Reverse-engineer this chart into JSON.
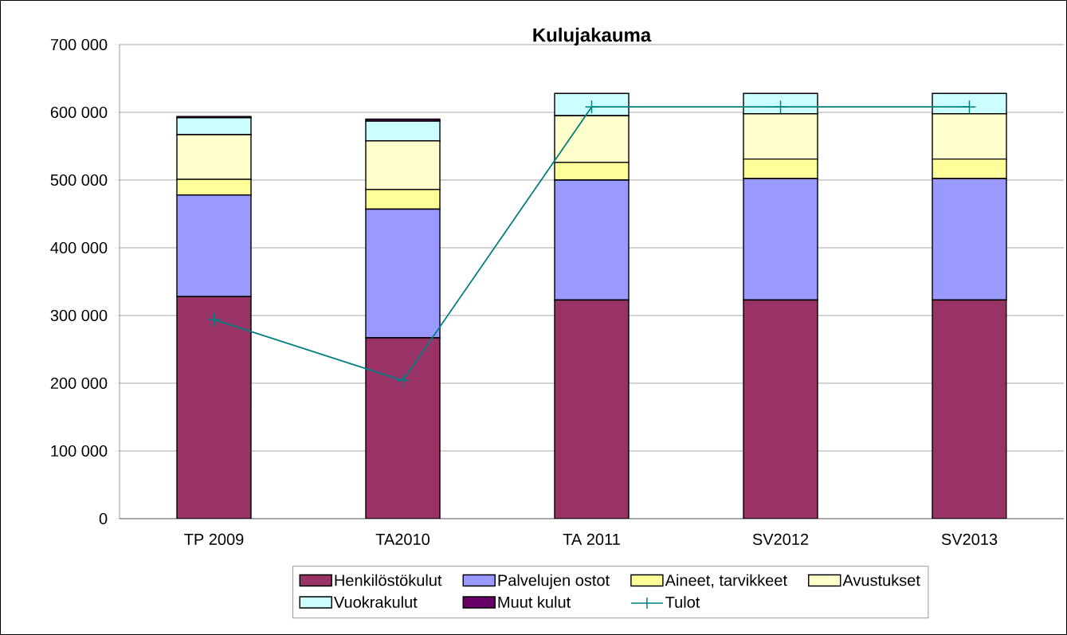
{
  "chart_data": {
    "type": "bar",
    "title": "Kulujakauma",
    "stacked": true,
    "categories": [
      "TP 2009",
      "TA2010",
      "TA 2011",
      "SV2012",
      "SV2013"
    ],
    "series": [
      {
        "name": "Henkilöstökulut",
        "color": "#993366",
        "values": [
          328000,
          267000,
          323000,
          323000,
          323000
        ]
      },
      {
        "name": "Palvelujen ostot",
        "color": "#9999ff",
        "values": [
          150000,
          190000,
          177000,
          179000,
          179000
        ]
      },
      {
        "name": "Aineet, tarvikkeet",
        "color": "#ffff99",
        "values": [
          23000,
          29000,
          26000,
          29000,
          29000
        ]
      },
      {
        "name": "Avustukset",
        "color": "#ffffcc",
        "values": [
          66000,
          72000,
          69000,
          67000,
          67000
        ]
      },
      {
        "name": "Vuokrakulut",
        "color": "#ccffff",
        "values": [
          25000,
          29000,
          33000,
          30000,
          30000
        ]
      },
      {
        "name": "Muut kulut",
        "color": "#660066",
        "values": [
          2000,
          3000,
          0,
          0,
          0
        ]
      },
      {
        "name": "Tulot",
        "type": "line",
        "color": "#008080",
        "marker": "cross",
        "line_style": "solid",
        "values": [
          294000,
          204000,
          608000,
          608000,
          608000
        ]
      }
    ],
    "ylim": [
      0,
      700000
    ],
    "yticks": [
      0,
      {
        "value": 100000,
        "label": "100 000"
      },
      {
        "value": 200000,
        "label": "200 000"
      },
      {
        "value": 300000,
        "label": "300 000"
      },
      {
        "value": 400000,
        "label": "400 000"
      },
      {
        "value": 500000,
        "label": "500 000"
      },
      {
        "value": 600000,
        "label": "600 000"
      },
      {
        "value": 700000,
        "label": "700 000"
      }
    ],
    "grid": "y",
    "legend": "bottom"
  }
}
